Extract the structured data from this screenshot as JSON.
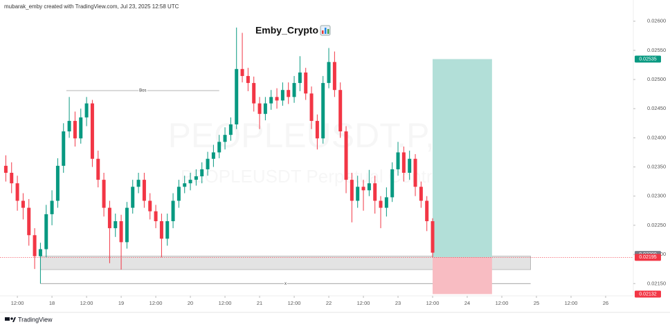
{
  "chart_data": {
    "type": "candlestick",
    "header": "mubarak_emby created with TradingView.com, Jul 23, 2025 12:58 UTC",
    "title": "Emby_Crypto",
    "watermark": "PEOPLEUSDT.P, 1h",
    "watermark_subtitle": "PEOPLEUSDT Perpetual Contract",
    "branding": "TradingView",
    "up_color": "#089981",
    "down_color": "#f23645",
    "xlim": [
      -4.1,
      213.6
    ],
    "ylim": [
      0.02129,
      0.02615
    ],
    "xticks": [
      {
        "value": 0,
        "label": "12:00"
      },
      {
        "value": 12,
        "label": "18"
      },
      {
        "value": 24,
        "label": "12:00"
      },
      {
        "value": 36,
        "label": "19"
      },
      {
        "value": 48,
        "label": "12:00"
      },
      {
        "value": 60,
        "label": "20"
      },
      {
        "value": 72,
        "label": "12:00"
      },
      {
        "value": 84,
        "label": "21"
      },
      {
        "value": 96,
        "label": "12:00"
      },
      {
        "value": 108,
        "label": "22"
      },
      {
        "value": 120,
        "label": "12:00"
      },
      {
        "value": 132,
        "label": "23"
      },
      {
        "value": 144,
        "label": "12:00"
      },
      {
        "value": 156,
        "label": "24"
      },
      {
        "value": 168,
        "label": "12:00"
      },
      {
        "value": 180,
        "label": "25"
      },
      {
        "value": 192,
        "label": "12:00"
      },
      {
        "value": 204,
        "label": "26"
      }
    ],
    "yticks": [
      {
        "value": 0.026,
        "label": "0.02600"
      },
      {
        "value": 0.0255,
        "label": "0.02550"
      },
      {
        "value": 0.025,
        "label": "0.02500"
      },
      {
        "value": 0.0245,
        "label": "0.02450"
      },
      {
        "value": 0.024,
        "label": "0.02400"
      },
      {
        "value": 0.0235,
        "label": "0.02350"
      },
      {
        "value": 0.023,
        "label": "0.02300"
      },
      {
        "value": 0.0225,
        "label": "0.02250"
      },
      {
        "value": 0.022,
        "label": "0.02200"
      },
      {
        "value": 0.0215,
        "label": "0.02150"
      }
    ],
    "grid": false,
    "x": [
      -4,
      -2,
      0,
      2,
      4,
      6,
      8,
      10,
      12,
      14,
      16,
      18,
      20,
      22,
      24,
      26,
      28,
      30,
      32,
      34,
      36,
      38,
      40,
      42,
      44,
      46,
      48,
      50,
      52,
      54,
      56,
      58,
      60,
      62,
      64,
      66,
      68,
      70,
      72,
      74,
      76,
      78,
      80,
      82,
      84,
      86,
      88,
      90,
      92,
      94,
      96,
      98,
      100,
      102,
      104,
      106,
      108,
      110,
      112,
      114,
      116,
      118,
      120,
      122,
      124,
      126,
      128,
      130,
      132,
      134,
      136,
      138,
      140,
      142,
      144
    ],
    "open": [
      0.02352,
      0.0234,
      0.02322,
      0.02292,
      0.0228,
      0.02233,
      0.02197,
      0.02209,
      0.02269,
      0.02292,
      0.02352,
      0.02411,
      0.02429,
      0.02399,
      0.02435,
      0.02459,
      0.02364,
      0.02328,
      0.0228,
      0.02245,
      0.02257,
      0.02221,
      0.0228,
      0.02316,
      0.02328,
      0.02292,
      0.02274,
      0.02257,
      0.02227,
      0.02257,
      0.02292,
      0.02316,
      0.02322,
      0.02328,
      0.02334,
      0.02346,
      0.02364,
      0.02375,
      0.02393,
      0.02405,
      0.02423,
      0.02518,
      0.02506,
      0.02494,
      0.02459,
      0.02441,
      0.02459,
      0.0247,
      0.02464,
      0.02482,
      0.0247,
      0.02494,
      0.02512,
      0.02476,
      0.02429,
      0.02399,
      0.02494,
      0.0253,
      0.02482,
      0.02411,
      0.02328,
      0.02292,
      0.02316,
      0.0231,
      0.02322,
      0.02292,
      0.0228,
      0.02298,
      0.02346,
      0.02375,
      0.0234,
      0.02364,
      0.02316,
      0.02292,
      0.02257
    ],
    "high": [
      0.0237,
      0.02358,
      0.02335,
      0.02305,
      0.02295,
      0.02245,
      0.0222,
      0.02285,
      0.0231,
      0.02365,
      0.02425,
      0.0247,
      0.02445,
      0.0245,
      0.0247,
      0.02465,
      0.02378,
      0.0234,
      0.02292,
      0.0227,
      0.02268,
      0.0229,
      0.02328,
      0.0234,
      0.0234,
      0.02305,
      0.02285,
      0.0227,
      0.0227,
      0.02305,
      0.02328,
      0.02335,
      0.0234,
      0.02346,
      0.02358,
      0.02376,
      0.02388,
      0.02405,
      0.02418,
      0.02435,
      0.02589,
      0.0258,
      0.0252,
      0.02505,
      0.0247,
      0.0247,
      0.02482,
      0.02485,
      0.02495,
      0.02495,
      0.02506,
      0.0254,
      0.0252,
      0.02488,
      0.0244,
      0.02506,
      0.02554,
      0.02548,
      0.02495,
      0.0242,
      0.0234,
      0.02335,
      0.02328,
      0.02345,
      0.02335,
      0.023,
      0.02315,
      0.02358,
      0.02393,
      0.02385,
      0.02378,
      0.02372,
      0.02325,
      0.023,
      0.02262
    ],
    "low": [
      0.02325,
      0.02305,
      0.02275,
      0.0226,
      0.02215,
      0.02175,
      0.0215,
      0.02195,
      0.0225,
      0.0228,
      0.0234,
      0.024,
      0.02385,
      0.0239,
      0.0242,
      0.0235,
      0.02315,
      0.02265,
      0.02185,
      0.0223,
      0.02174,
      0.0221,
      0.0227,
      0.02305,
      0.0228,
      0.0226,
      0.02245,
      0.02195,
      0.02215,
      0.02245,
      0.0228,
      0.02305,
      0.0231,
      0.02318,
      0.02322,
      0.02335,
      0.0235,
      0.02365,
      0.0238,
      0.02395,
      0.02415,
      0.02495,
      0.0248,
      0.02445,
      0.02415,
      0.0243,
      0.02448,
      0.0245,
      0.02455,
      0.02458,
      0.0246,
      0.0248,
      0.02465,
      0.02415,
      0.0238,
      0.0239,
      0.02485,
      0.0247,
      0.024,
      0.02305,
      0.02255,
      0.0228,
      0.02275,
      0.023,
      0.0227,
      0.02245,
      0.02265,
      0.0229,
      0.02335,
      0.02325,
      0.02328,
      0.023,
      0.0228,
      0.0224,
      0.02195
    ],
    "close": [
      0.0234,
      0.02322,
      0.02292,
      0.0228,
      0.02233,
      0.02197,
      0.02209,
      0.02269,
      0.02292,
      0.02352,
      0.02411,
      0.02429,
      0.02399,
      0.02435,
      0.02459,
      0.02364,
      0.02328,
      0.0228,
      0.02245,
      0.02257,
      0.02221,
      0.0228,
      0.02316,
      0.02328,
      0.02292,
      0.02274,
      0.02257,
      0.02227,
      0.02257,
      0.02292,
      0.02316,
      0.02322,
      0.02328,
      0.02334,
      0.02346,
      0.02364,
      0.02375,
      0.02393,
      0.02405,
      0.02423,
      0.02518,
      0.02506,
      0.02494,
      0.02459,
      0.02441,
      0.02459,
      0.0247,
      0.02464,
      0.02482,
      0.0247,
      0.02494,
      0.02512,
      0.02476,
      0.02429,
      0.02399,
      0.02494,
      0.0253,
      0.02482,
      0.02411,
      0.02328,
      0.02292,
      0.02316,
      0.0231,
      0.02322,
      0.02292,
      0.0228,
      0.02298,
      0.02346,
      0.02375,
      0.0234,
      0.02364,
      0.02316,
      0.02292,
      0.02257,
      0.02203
    ],
    "zone": {
      "low": 0.02174,
      "high": 0.02197,
      "x_start": 8,
      "x_end": 178,
      "color": "#dcdcdc"
    },
    "lines": [
      {
        "label": "Bos",
        "value": 0.02481,
        "x_start": 17,
        "x_end": 70
      },
      {
        "label": "x",
        "value": 0.0215,
        "x_start": 8,
        "x_end": 178
      }
    ],
    "position": {
      "entry": 0.02195,
      "take_profit": 0.02535,
      "stop_loss": 0.02132,
      "x_start": 144,
      "x_end": 164.6,
      "profit_color": "#b2dfd8",
      "loss_color": "#f8bcc2"
    },
    "price_tags": [
      {
        "value": 0.02535,
        "label": "0.02535",
        "color": "#089981"
      },
      {
        "value": 0.022,
        "label": "0.02200",
        "color": "#787b86"
      },
      {
        "value": 0.02195,
        "label": "0.02195",
        "color": "#f23645"
      },
      {
        "value": 0.02132,
        "label": "0.02132",
        "color": "#f23645"
      }
    ]
  }
}
